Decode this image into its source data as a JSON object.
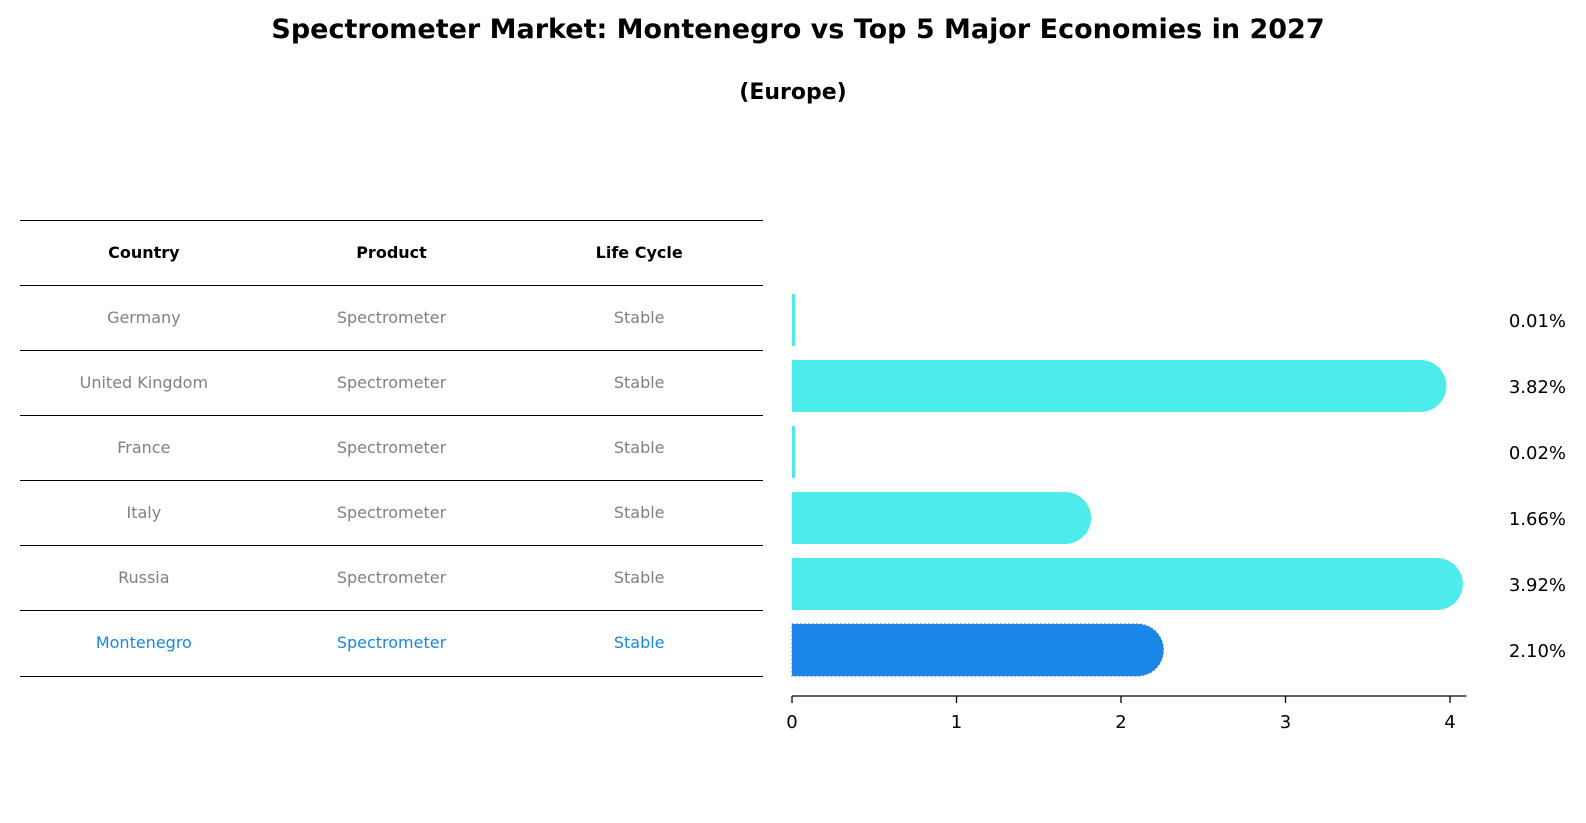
{
  "title": "Spectrometer Market: Montenegro vs Top 5 Major Economies in 2027",
  "subtitle": "(Europe)",
  "table": {
    "headers": [
      "Country",
      "Product",
      "Life Cycle"
    ],
    "rows": [
      [
        "Germany",
        "Spectrometer",
        "Stable"
      ],
      [
        "United Kingdom",
        "Spectrometer",
        "Stable"
      ],
      [
        "France",
        "Spectrometer",
        "Stable"
      ],
      [
        "Italy",
        "Spectrometer",
        "Stable"
      ],
      [
        "Russia",
        "Spectrometer",
        "Stable"
      ],
      [
        "Montenegro",
        "Spectrometer",
        "Stable"
      ]
    ]
  },
  "colors": {
    "bar": "#4deceb",
    "highlight": "#1a87e8",
    "muted_text": "#808080"
  },
  "chart_data": {
    "type": "bar",
    "orientation": "horizontal",
    "title": "Spectrometer Market: Montenegro vs Top 5 Major Economies in 2027",
    "subtitle": "(Europe)",
    "categories": [
      "Germany",
      "United Kingdom",
      "France",
      "Italy",
      "Russia",
      "Montenegro"
    ],
    "values": [
      0.01,
      3.82,
      0.02,
      1.66,
      3.92,
      2.1
    ],
    "value_labels": [
      "0.01%",
      "3.82%",
      "0.02%",
      "1.66%",
      "3.92%",
      "2.10%"
    ],
    "highlight_category": "Montenegro",
    "xlim": [
      0,
      4.1
    ],
    "xticks": [
      0,
      1,
      2,
      3,
      4
    ],
    "xlabel": "",
    "ylabel": "",
    "grid": false
  }
}
